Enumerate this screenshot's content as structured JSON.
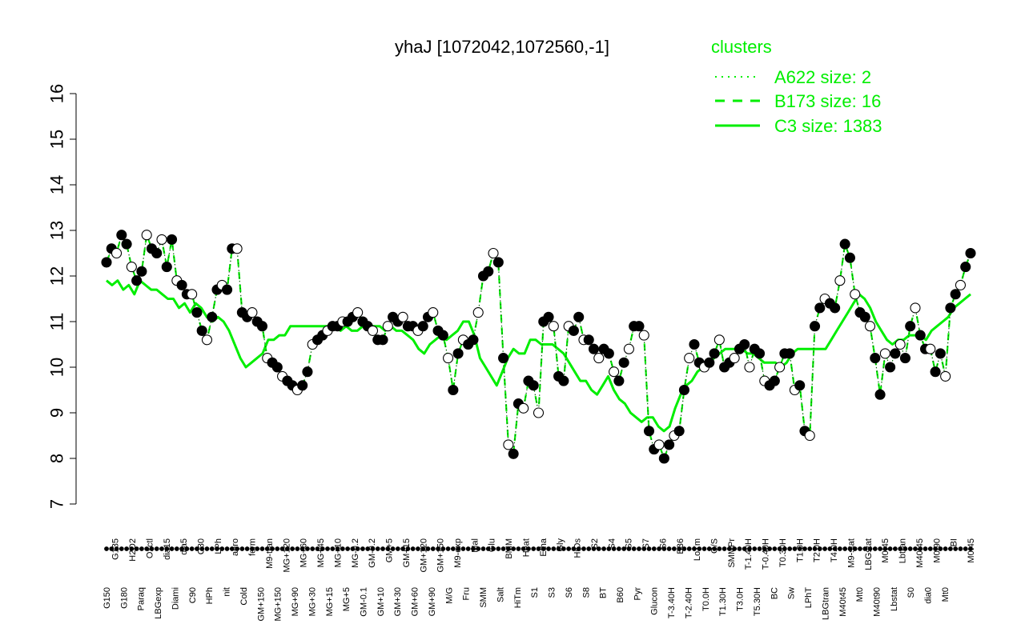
{
  "chart_data": {
    "type": "line",
    "title": "yhaJ [1072042,1072560,-1]",
    "xlabel": "",
    "ylabel": "",
    "ylim": [
      7,
      16
    ],
    "yticks": [
      7,
      8,
      9,
      10,
      11,
      12,
      13,
      14,
      15,
      16
    ],
    "legend": {
      "title": "clusters",
      "placement": "top-right",
      "entries": [
        {
          "label": "A622 size: 2",
          "style": "dotted"
        },
        {
          "label": "B173 size: 16",
          "style": "dashed"
        },
        {
          "label": "C3 size: 1383",
          "style": "solid"
        }
      ]
    },
    "x_tick_labels_upper": [
      "G135",
      "H2O2",
      "Oxctl",
      "dia15",
      "dia5",
      "C30",
      "LPh",
      "aero",
      "ferm",
      "M9-tran",
      "MG+120",
      "MG+60",
      "MG+45",
      "MG+10",
      "MG-0.2",
      "GM-0.2",
      "GM+5",
      "GM+15",
      "GM+120",
      "GM+150",
      "M9-exp",
      "Mal",
      "Glu",
      "BMM",
      "Heat",
      "Etha",
      "Gly",
      "HiOs",
      "S2",
      "S4",
      "S5",
      "S7",
      "S6",
      "B36",
      "LoTm",
      "G/S",
      "SMMPr",
      "T-1.40H",
      "T-0.40H",
      "T0.30H",
      "T1.0H",
      "T2.0H",
      "T4.0H",
      "M9-stat",
      "LBGstat",
      "M0t45",
      "Lbtran",
      "M40t45",
      "M0t90",
      "BI",
      "M0t45",
      "Lbexp"
    ],
    "x_tick_labels_lower": [
      "G150",
      "G180",
      "Paraq",
      "LBGexp",
      "Diami",
      "C90",
      "HPh",
      "nit",
      "Cold",
      "GM+150",
      "MG+150",
      "MG+90",
      "MG+30",
      "MG+15",
      "MG+5",
      "GM-0.1",
      "GM+10",
      "GM+30",
      "GM+60",
      "GM+90",
      "M/G",
      "Fru",
      "SMM",
      "Salt",
      "HiTm",
      "S1",
      "S3",
      "S6",
      "S8",
      "BT",
      "B60",
      "Pyr",
      "Glucon",
      "T-3.40H",
      "T-2.40H",
      "T0.0H",
      "T1.30H",
      "T3.0H",
      "T5.30H",
      "BC",
      "Sw",
      "LPhT",
      "LBGtran",
      "M40t45",
      "Mt0",
      "M40t90",
      "Lbstat",
      "S0",
      "dia0",
      "Mt0"
    ],
    "series": [
      {
        "name": "C3 size: 1383",
        "style": "solid",
        "color": "#00ee00",
        "y": [
          11.9,
          11.8,
          11.9,
          11.7,
          11.8,
          11.6,
          11.9,
          11.8,
          11.7,
          11.7,
          11.6,
          11.5,
          11.5,
          11.3,
          11.4,
          11.2,
          11.4,
          11.3,
          11.1,
          11.0,
          11.1,
          11.0,
          10.8,
          10.5,
          10.2,
          10.0,
          10.1,
          10.2,
          10.3,
          10.6,
          10.6,
          10.7,
          10.7,
          10.9,
          10.9,
          10.9,
          10.9,
          10.9,
          10.9,
          10.9,
          10.9,
          10.9,
          10.8,
          10.9,
          10.8,
          10.8,
          10.9,
          10.9,
          10.9,
          10.9,
          10.8,
          10.9,
          10.8,
          10.8,
          10.7,
          10.6,
          10.4,
          10.3,
          10.5,
          10.6,
          10.7,
          10.6,
          10.7,
          10.8,
          11.0,
          11.0,
          10.7,
          10.2,
          10.0,
          9.8,
          9.6,
          9.9,
          10.2,
          10.4,
          10.3,
          10.3,
          10.6,
          10.6,
          10.5,
          10.5,
          10.5,
          10.4,
          10.3,
          10.1,
          9.9,
          9.7,
          9.7,
          9.5,
          9.4,
          9.6,
          9.8,
          9.5,
          9.3,
          9.2,
          9.0,
          8.9,
          8.8,
          8.9,
          8.9,
          8.7,
          8.6,
          8.7,
          9.1,
          9.4,
          9.6,
          9.7,
          9.9,
          10.0,
          10.1,
          10.2,
          10.3,
          10.4,
          10.4,
          10.4,
          10.4,
          10.3,
          10.3,
          10.2,
          10.1,
          10.1,
          10.1,
          10.0,
          10.1,
          10.3,
          10.4,
          10.4,
          10.4,
          10.4,
          10.4,
          10.4,
          10.6,
          10.8,
          11.0,
          11.2,
          11.4,
          11.6,
          11.5,
          11.3,
          11.0,
          10.8,
          10.6,
          10.5,
          10.6,
          10.6,
          10.7,
          10.7,
          10.7,
          10.6,
          10.8,
          10.9,
          11.0,
          11.1,
          11.3,
          11.4,
          11.5,
          11.6
        ]
      },
      {
        "name": "B173 size: 16",
        "style": "dashed",
        "color": "#00ee00",
        "y": [
          12.3,
          12.6,
          12.5,
          12.9,
          12.7,
          12.2,
          11.9,
          12.1,
          12.9,
          12.6,
          12.5,
          12.8,
          12.2,
          12.8,
          11.9,
          11.8,
          11.6,
          11.6,
          11.2,
          10.8,
          10.6,
          11.1,
          11.7,
          11.8,
          11.7,
          12.6,
          12.6,
          11.2,
          11.1,
          11.2,
          11.0,
          10.9,
          10.2,
          10.1,
          10.0,
          9.8,
          9.7,
          9.6,
          9.5,
          9.6,
          9.9,
          10.5,
          10.6,
          10.7,
          10.8,
          10.9,
          10.9,
          11.0,
          11.0,
          11.1,
          11.2,
          11.0,
          10.9,
          10.8,
          10.6,
          10.6,
          10.9,
          11.1,
          11.0,
          11.1,
          10.9,
          10.9,
          10.8,
          10.9,
          11.1,
          11.2,
          10.8,
          10.7,
          10.2,
          9.5,
          10.3,
          10.6,
          10.5,
          10.6,
          11.2,
          12.0,
          12.1,
          12.5,
          12.3,
          10.2,
          8.3,
          8.1,
          9.2,
          9.1,
          9.7,
          9.6,
          9.0,
          11.0,
          11.1,
          10.9,
          9.8,
          9.7,
          10.9,
          10.8,
          11.1,
          10.6,
          10.6,
          10.4,
          10.2,
          10.4,
          10.3,
          9.9,
          9.7,
          10.1,
          10.4,
          10.9,
          10.9,
          10.7,
          8.6,
          8.2,
          8.3,
          8.0,
          8.3,
          8.5,
          8.6,
          9.5,
          10.2,
          10.5,
          10.1,
          10.0,
          10.1,
          10.3,
          10.6,
          10.0,
          10.1,
          10.2,
          10.4,
          10.5,
          10.0,
          10.4,
          10.3,
          9.7,
          9.6,
          9.7,
          10.0,
          10.3,
          10.3,
          9.5,
          9.6,
          8.6,
          8.5,
          10.9,
          11.3,
          11.5,
          11.4,
          11.3,
          11.9,
          12.7,
          12.4,
          11.6,
          11.2,
          11.1,
          10.9,
          10.2,
          9.4,
          10.3,
          10.0,
          10.3,
          10.5,
          10.2,
          10.9,
          11.3,
          10.7,
          10.4,
          10.4,
          9.9,
          10.3,
          9.8,
          11.3,
          11.6,
          11.8,
          12.2,
          12.5
        ]
      },
      {
        "name": "A622 size: 2",
        "style": "dotted",
        "color": "#00ee00",
        "y": [
          12.3,
          12.6,
          12.5,
          12.9,
          12.7,
          12.2,
          11.9,
          12.1,
          12.9,
          12.6,
          12.5,
          12.8,
          12.2,
          12.8,
          11.9,
          11.8,
          11.6,
          11.6,
          11.2,
          10.8,
          10.6,
          11.1,
          11.7,
          11.8,
          11.7,
          12.6,
          12.6,
          11.2,
          11.1,
          11.2,
          11.0,
          10.9,
          10.2,
          10.1,
          10.0,
          9.8,
          9.7,
          9.6,
          9.5,
          9.6,
          9.9,
          10.5,
          10.6,
          10.7,
          10.8,
          10.9,
          10.9,
          11.0,
          11.0,
          11.1,
          11.2,
          11.0,
          10.9,
          10.8,
          10.6,
          10.6,
          10.9,
          11.1,
          11.0,
          11.1,
          10.9,
          10.9,
          10.8,
          10.9,
          11.1,
          11.2,
          10.8,
          10.7,
          10.2,
          9.5,
          10.3,
          10.6,
          10.5,
          10.6,
          11.2,
          12.0,
          12.1,
          12.5,
          12.3,
          10.2,
          8.3,
          8.1,
          9.2,
          9.1,
          9.7,
          9.6,
          9.0,
          11.0,
          11.1,
          10.9,
          9.8,
          9.7,
          10.9,
          10.8,
          11.1,
          10.6,
          10.6,
          10.4,
          10.2,
          10.4,
          10.3,
          9.9,
          9.7,
          10.1,
          10.4,
          10.9,
          10.9,
          10.7,
          8.6,
          8.2,
          8.3,
          8.0,
          8.3,
          8.5,
          8.6,
          9.5,
          10.2,
          10.5,
          10.1,
          10.0,
          10.1,
          10.3,
          10.6,
          10.0,
          10.1,
          10.2,
          10.4,
          10.5,
          10.0,
          10.4,
          10.3,
          9.7,
          9.6,
          9.7,
          10.0,
          10.3,
          10.3,
          9.5,
          9.6,
          8.6,
          8.5,
          10.9,
          11.3,
          11.5,
          11.4,
          11.3,
          11.9,
          12.7,
          12.4,
          11.6,
          11.2,
          11.1,
          10.9,
          10.2,
          9.4,
          10.3,
          10.0,
          10.3,
          10.5,
          10.2,
          10.9,
          11.3,
          10.7,
          10.4,
          10.4,
          9.9,
          10.3,
          9.8,
          11.3,
          11.6,
          11.8,
          12.2,
          12.5
        ]
      }
    ],
    "marker_colors": {
      "filled": "#000000",
      "open": "#ffffff"
    }
  }
}
